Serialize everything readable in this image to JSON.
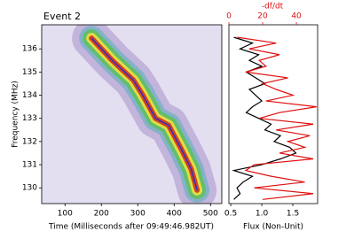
{
  "chart_data": [
    {
      "type": "line",
      "title": "Event 2",
      "xlabel": "Time (Milliseconds after 09:49:46.982UT)",
      "ylabel": "Frequency (MHz)",
      "x": [
        173,
        230,
        288,
        312,
        349,
        385,
        422,
        447,
        463
      ],
      "series": [
        {
          "color": "#1f2fd0",
          "values": [
            136.46,
            135.5,
            134.65,
            134.05,
            133.0,
            132.7,
            131.6,
            130.8,
            129.9
          ]
        }
      ],
      "xlim": [
        36,
        531
      ],
      "ylim": [
        129.32,
        137.04
      ],
      "xticks": [
        100,
        200,
        300,
        400,
        500
      ],
      "yticks": [
        130,
        131,
        132,
        133,
        134,
        135,
        136
      ]
    },
    {
      "type": "profile",
      "xlabel": "Flux (Non-Unit)",
      "x2label": "-df/dt",
      "y": [
        136.5,
        136.25,
        136.0,
        135.75,
        135.5,
        135.25,
        135.0,
        134.75,
        134.5,
        134.25,
        134.0,
        133.75,
        133.5,
        133.25,
        133.0,
        132.75,
        132.5,
        132.25,
        132.0,
        131.75,
        131.5,
        131.25,
        131.0,
        130.75,
        130.5,
        130.25,
        130.0,
        129.75,
        129.5
      ],
      "series": [
        {
          "color": "#000000",
          "values": [
            0.55,
            0.85,
            0.65,
            0.95,
            0.8,
            1.0,
            0.75,
            0.9,
            1.05,
            0.8,
            0.9,
            1.0,
            0.85,
            0.75,
            0.95,
            1.15,
            1.05,
            1.3,
            1.2,
            1.45,
            1.55,
            1.3,
            1.0,
            0.55,
            0.85,
            0.7,
            0.6,
            0.65,
            0.55
          ]
        },
        {
          "color": "#e01010",
          "axis": "x2",
          "values": [
            5,
            28,
            12,
            30,
            18,
            22,
            10,
            35,
            20,
            28,
            38,
            22,
            52,
            30,
            18,
            50,
            28,
            48,
            35,
            45,
            30,
            50,
            15,
            10,
            25,
            45,
            15,
            50,
            20
          ]
        }
      ],
      "xlim": [
        0.47,
        1.9
      ],
      "x2lim": [
        0,
        52.6
      ],
      "ylim": [
        129.32,
        137.04
      ],
      "xticks": [
        0.5,
        {
          "value": 1,
          "label": "1.0"
        },
        1.5
      ],
      "x2ticks": [
        0,
        20,
        40
      ]
    }
  ]
}
